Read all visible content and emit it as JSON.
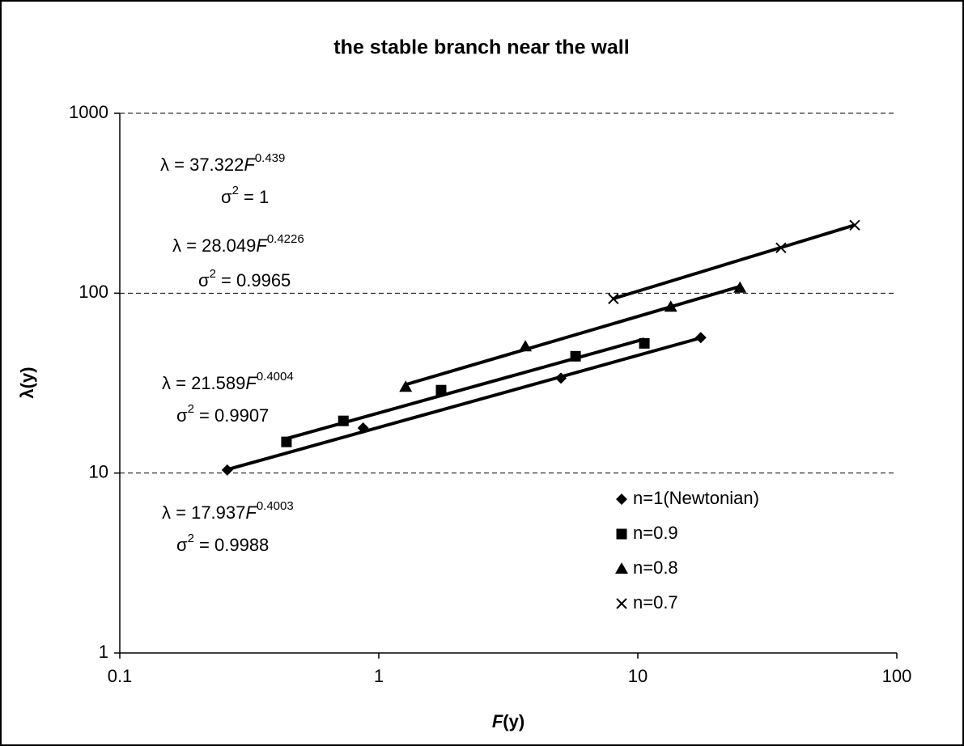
{
  "chart_data": {
    "type": "scatter",
    "title": "the stable branch near the wall",
    "xlabel_symbol": "F",
    "xlabel_rest": "(y)",
    "ylabel": "λ(y)",
    "xscale": "log",
    "yscale": "log",
    "xlim": [
      0.1,
      100
    ],
    "ylim": [
      1,
      1000
    ],
    "xticks": [
      0.1,
      1,
      10,
      100
    ],
    "yticks": [
      1,
      10,
      100,
      1000
    ],
    "grid": true,
    "legend": "lower right",
    "trendline_text": {
      "lhs": "λ = ",
      "variable": "F",
      "r2_symbol": "σ",
      "r2_power": "2",
      "equals": " = "
    },
    "series": [
      {
        "name": "n=1(Newtonian)",
        "color": "#000000",
        "marker": "diamond",
        "x": [
          0.26,
          0.87,
          5.05,
          17.5
        ],
        "values": [
          10.4,
          17.8,
          33.7,
          56.6
        ],
        "trendline": {
          "coefficient": 17.937,
          "exponent": 0.4003,
          "r_squared": 0.9988
        }
      },
      {
        "name": "n=0.9",
        "color": "#000000",
        "marker": "square",
        "x": [
          0.44,
          0.73,
          1.74,
          5.75,
          10.6
        ],
        "values": [
          14.9,
          19.5,
          28.9,
          44.6,
          52.6
        ],
        "trendline": {
          "coefficient": 21.589,
          "exponent": 0.4004,
          "r_squared": 0.9907
        }
      },
      {
        "name": "n=0.8",
        "color": "#000000",
        "marker": "triangle",
        "x": [
          1.27,
          3.68,
          13.4,
          24.8
        ],
        "values": [
          30.1,
          50.5,
          83.9,
          107
        ],
        "trendline": {
          "coefficient": 28.049,
          "exponent": 0.4226,
          "r_squared": 0.9965
        }
      },
      {
        "name": "n=0.7",
        "color": "#000000",
        "marker": "x",
        "x": [
          8.05,
          35.7,
          68.8
        ],
        "values": [
          93,
          178.6,
          238.7
        ],
        "trendline": {
          "coefficient": 37.322,
          "exponent": 0.439,
          "r_squared": 1
        }
      }
    ]
  }
}
